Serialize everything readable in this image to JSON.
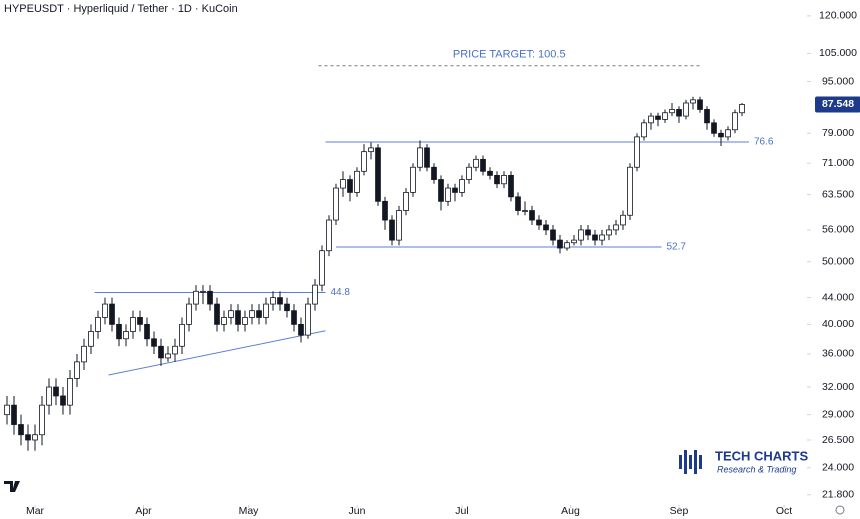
{
  "chart_data": {
    "type": "candlestick",
    "title": "HYPEUSDT · Hyperliquid / Tether · 1D · KuCoin",
    "log_scale": true,
    "xlim": [
      -10,
      220
    ],
    "xticks": [
      {
        "value": 0,
        "label": "Mar"
      },
      {
        "value": 31,
        "label": "Apr"
      },
      {
        "value": 61,
        "label": "May"
      },
      {
        "value": 92,
        "label": "Jun"
      },
      {
        "value": 122,
        "label": "Jul"
      },
      {
        "value": 153,
        "label": "Aug"
      },
      {
        "value": 184,
        "label": "Sep"
      },
      {
        "value": 214,
        "label": "Oct"
      }
    ],
    "ylim": [
      20,
      127
    ],
    "yticks": [
      {
        "value": 120,
        "label": "120.000"
      },
      {
        "value": 105,
        "label": "105.000"
      },
      {
        "value": 95,
        "label": "95.000"
      },
      {
        "value": 79,
        "label": "79.000"
      },
      {
        "value": 71,
        "label": "71.000"
      },
      {
        "value": 63.5,
        "label": "63.500"
      },
      {
        "value": 56,
        "label": "56.000"
      },
      {
        "value": 50,
        "label": "50.000"
      },
      {
        "value": 44,
        "label": "44.000"
      },
      {
        "value": 40,
        "label": "40.000"
      },
      {
        "value": 36,
        "label": "36.000"
      },
      {
        "value": 32,
        "label": "32.000"
      },
      {
        "value": 29,
        "label": "29.000"
      },
      {
        "value": 26.5,
        "label": "26.500"
      },
      {
        "value": 24,
        "label": "24.000"
      },
      {
        "value": 21.8,
        "label": "21.800"
      }
    ],
    "last_price": {
      "value": 87.548,
      "label": "87.548",
      "color": "#1e3a8a"
    },
    "up_color": "#ffffff",
    "down_color": "#131722",
    "line_color": "#5b7fd6",
    "candles": [
      [
        -8,
        29,
        31,
        28,
        30
      ],
      [
        -6,
        30,
        31,
        27,
        28
      ],
      [
        -4,
        28,
        29,
        26,
        27
      ],
      [
        -2,
        27,
        28,
        25.5,
        26.5
      ],
      [
        0,
        26.5,
        28,
        25.5,
        27
      ],
      [
        2,
        27,
        31,
        26,
        30
      ],
      [
        4,
        30,
        33,
        29,
        32
      ],
      [
        6,
        32,
        33,
        30,
        31
      ],
      [
        8,
        31,
        32,
        29,
        30
      ],
      [
        10,
        30,
        34,
        29,
        33
      ],
      [
        12,
        33,
        36,
        32,
        35
      ],
      [
        14,
        35,
        38,
        34,
        37
      ],
      [
        16,
        37,
        40,
        36,
        39
      ],
      [
        18,
        39,
        42,
        38,
        41
      ],
      [
        20,
        41,
        44,
        40,
        43
      ],
      [
        22,
        43,
        44,
        39,
        40
      ],
      [
        24,
        40,
        41,
        37,
        38
      ],
      [
        26,
        38,
        40,
        37,
        39
      ],
      [
        28,
        39,
        42,
        38,
        41
      ],
      [
        30,
        41,
        42,
        39,
        40
      ],
      [
        32,
        40,
        41,
        37,
        38
      ],
      [
        34,
        38,
        39,
        36,
        37
      ],
      [
        36,
        37,
        38,
        34.5,
        35.5
      ],
      [
        38,
        35.5,
        37,
        35,
        36
      ],
      [
        40,
        36,
        38,
        35,
        37
      ],
      [
        42,
        37,
        41,
        36,
        40
      ],
      [
        44,
        40,
        44,
        39,
        43
      ],
      [
        46,
        43,
        46,
        42,
        45
      ],
      [
        48,
        45,
        46,
        43,
        45
      ],
      [
        50,
        45,
        46,
        42,
        43
      ],
      [
        52,
        43,
        44,
        39,
        40
      ],
      [
        54,
        40,
        42,
        39,
        41
      ],
      [
        56,
        41,
        43,
        40,
        42
      ],
      [
        58,
        42,
        43,
        39,
        40
      ],
      [
        60,
        40,
        42,
        39,
        41
      ],
      [
        62,
        41,
        43,
        40,
        42
      ],
      [
        64,
        42,
        43,
        40,
        41
      ],
      [
        66,
        41,
        44,
        40,
        43
      ],
      [
        68,
        43,
        45,
        42,
        44
      ],
      [
        70,
        44,
        45,
        42,
        43
      ],
      [
        72,
        43,
        44,
        41,
        42
      ],
      [
        74,
        42,
        43,
        39,
        40
      ],
      [
        76,
        40,
        41,
        37.5,
        38.5
      ],
      [
        78,
        38.5,
        44,
        38,
        43
      ],
      [
        80,
        43,
        47,
        42,
        46
      ],
      [
        82,
        46,
        53,
        45,
        52
      ],
      [
        84,
        52,
        59,
        51,
        58
      ],
      [
        86,
        58,
        66,
        57,
        65
      ],
      [
        88,
        65,
        69,
        63,
        67
      ],
      [
        90,
        67,
        68,
        62,
        64
      ],
      [
        92,
        64,
        70,
        63,
        69
      ],
      [
        94,
        69,
        76,
        68,
        74
      ],
      [
        96,
        74,
        76.5,
        72,
        75
      ],
      [
        98,
        75,
        76,
        61,
        62
      ],
      [
        100,
        62,
        63,
        56,
        58
      ],
      [
        102,
        58,
        59,
        53,
        54
      ],
      [
        104,
        54,
        61,
        53,
        60
      ],
      [
        106,
        60,
        65,
        59,
        64
      ],
      [
        108,
        64,
        71,
        63,
        70
      ],
      [
        110,
        70,
        77,
        69,
        75
      ],
      [
        112,
        75,
        76,
        69,
        70
      ],
      [
        114,
        70,
        71,
        66,
        67
      ],
      [
        116,
        67,
        68,
        60,
        62
      ],
      [
        118,
        62,
        66,
        61,
        65
      ],
      [
        120,
        65,
        66,
        62,
        64
      ],
      [
        122,
        64,
        68,
        63,
        67
      ],
      [
        124,
        67,
        71,
        66,
        70
      ],
      [
        126,
        70,
        73,
        69,
        72
      ],
      [
        128,
        72,
        73,
        68,
        69
      ],
      [
        130,
        69,
        70,
        67,
        68
      ],
      [
        132,
        68,
        69,
        65,
        66
      ],
      [
        134,
        66,
        69,
        65,
        68
      ],
      [
        136,
        68,
        69,
        62,
        63
      ],
      [
        138,
        63,
        64,
        59,
        60
      ],
      [
        140,
        60,
        62,
        59,
        60
      ],
      [
        142,
        60,
        61,
        57,
        58
      ],
      [
        144,
        58,
        59,
        56,
        57
      ],
      [
        146,
        57,
        58,
        55,
        56
      ],
      [
        148,
        56,
        57,
        53,
        54
      ],
      [
        150,
        54,
        55,
        51.5,
        52.5
      ],
      [
        152,
        52.5,
        54,
        52,
        53.5
      ],
      [
        154,
        53.5,
        55,
        53,
        54
      ],
      [
        156,
        54,
        57,
        53,
        56
      ],
      [
        158,
        56,
        57,
        54,
        55
      ],
      [
        160,
        55,
        56,
        53,
        54
      ],
      [
        162,
        54,
        56,
        53,
        55
      ],
      [
        164,
        55,
        57,
        54,
        56
      ],
      [
        166,
        56,
        58,
        55,
        57
      ],
      [
        168,
        57,
        60,
        56,
        59
      ],
      [
        170,
        59,
        71,
        58,
        70
      ],
      [
        172,
        70,
        79,
        69,
        78
      ],
      [
        174,
        78,
        83,
        77,
        82
      ],
      [
        176,
        82,
        85,
        80,
        84
      ],
      [
        178,
        84,
        85,
        81,
        83
      ],
      [
        180,
        83,
        86,
        82,
        85
      ],
      [
        182,
        85,
        88,
        84,
        86
      ],
      [
        184,
        86,
        87,
        82,
        84
      ],
      [
        186,
        84,
        89,
        83,
        88
      ],
      [
        188,
        88,
        90,
        86,
        89
      ],
      [
        190,
        89,
        90,
        85,
        86
      ],
      [
        192,
        86,
        87,
        80,
        82
      ],
      [
        194,
        82,
        83,
        78,
        79
      ],
      [
        196,
        79,
        80,
        75.5,
        78
      ],
      [
        198,
        78,
        81,
        77,
        80
      ],
      [
        200,
        80,
        86,
        79,
        85
      ],
      [
        202,
        85,
        88,
        84,
        87.548
      ]
    ],
    "levels": [
      {
        "value": 76.6,
        "x": [
          83,
          204
        ]
      },
      {
        "value": 52.7,
        "x": [
          86,
          179
        ]
      },
      {
        "value": 44.8,
        "x": [
          17,
          83
        ]
      }
    ],
    "target": {
      "value": 100.5,
      "x": [
        81,
        190
      ],
      "label": "PRICE TARGET: 100.5"
    },
    "trendline": {
      "x": [
        21,
        83
      ],
      "y": [
        33.4,
        39.1
      ]
    },
    "brand": {
      "name": "TECH CHARTS",
      "tagline": "Research & Trading"
    }
  }
}
